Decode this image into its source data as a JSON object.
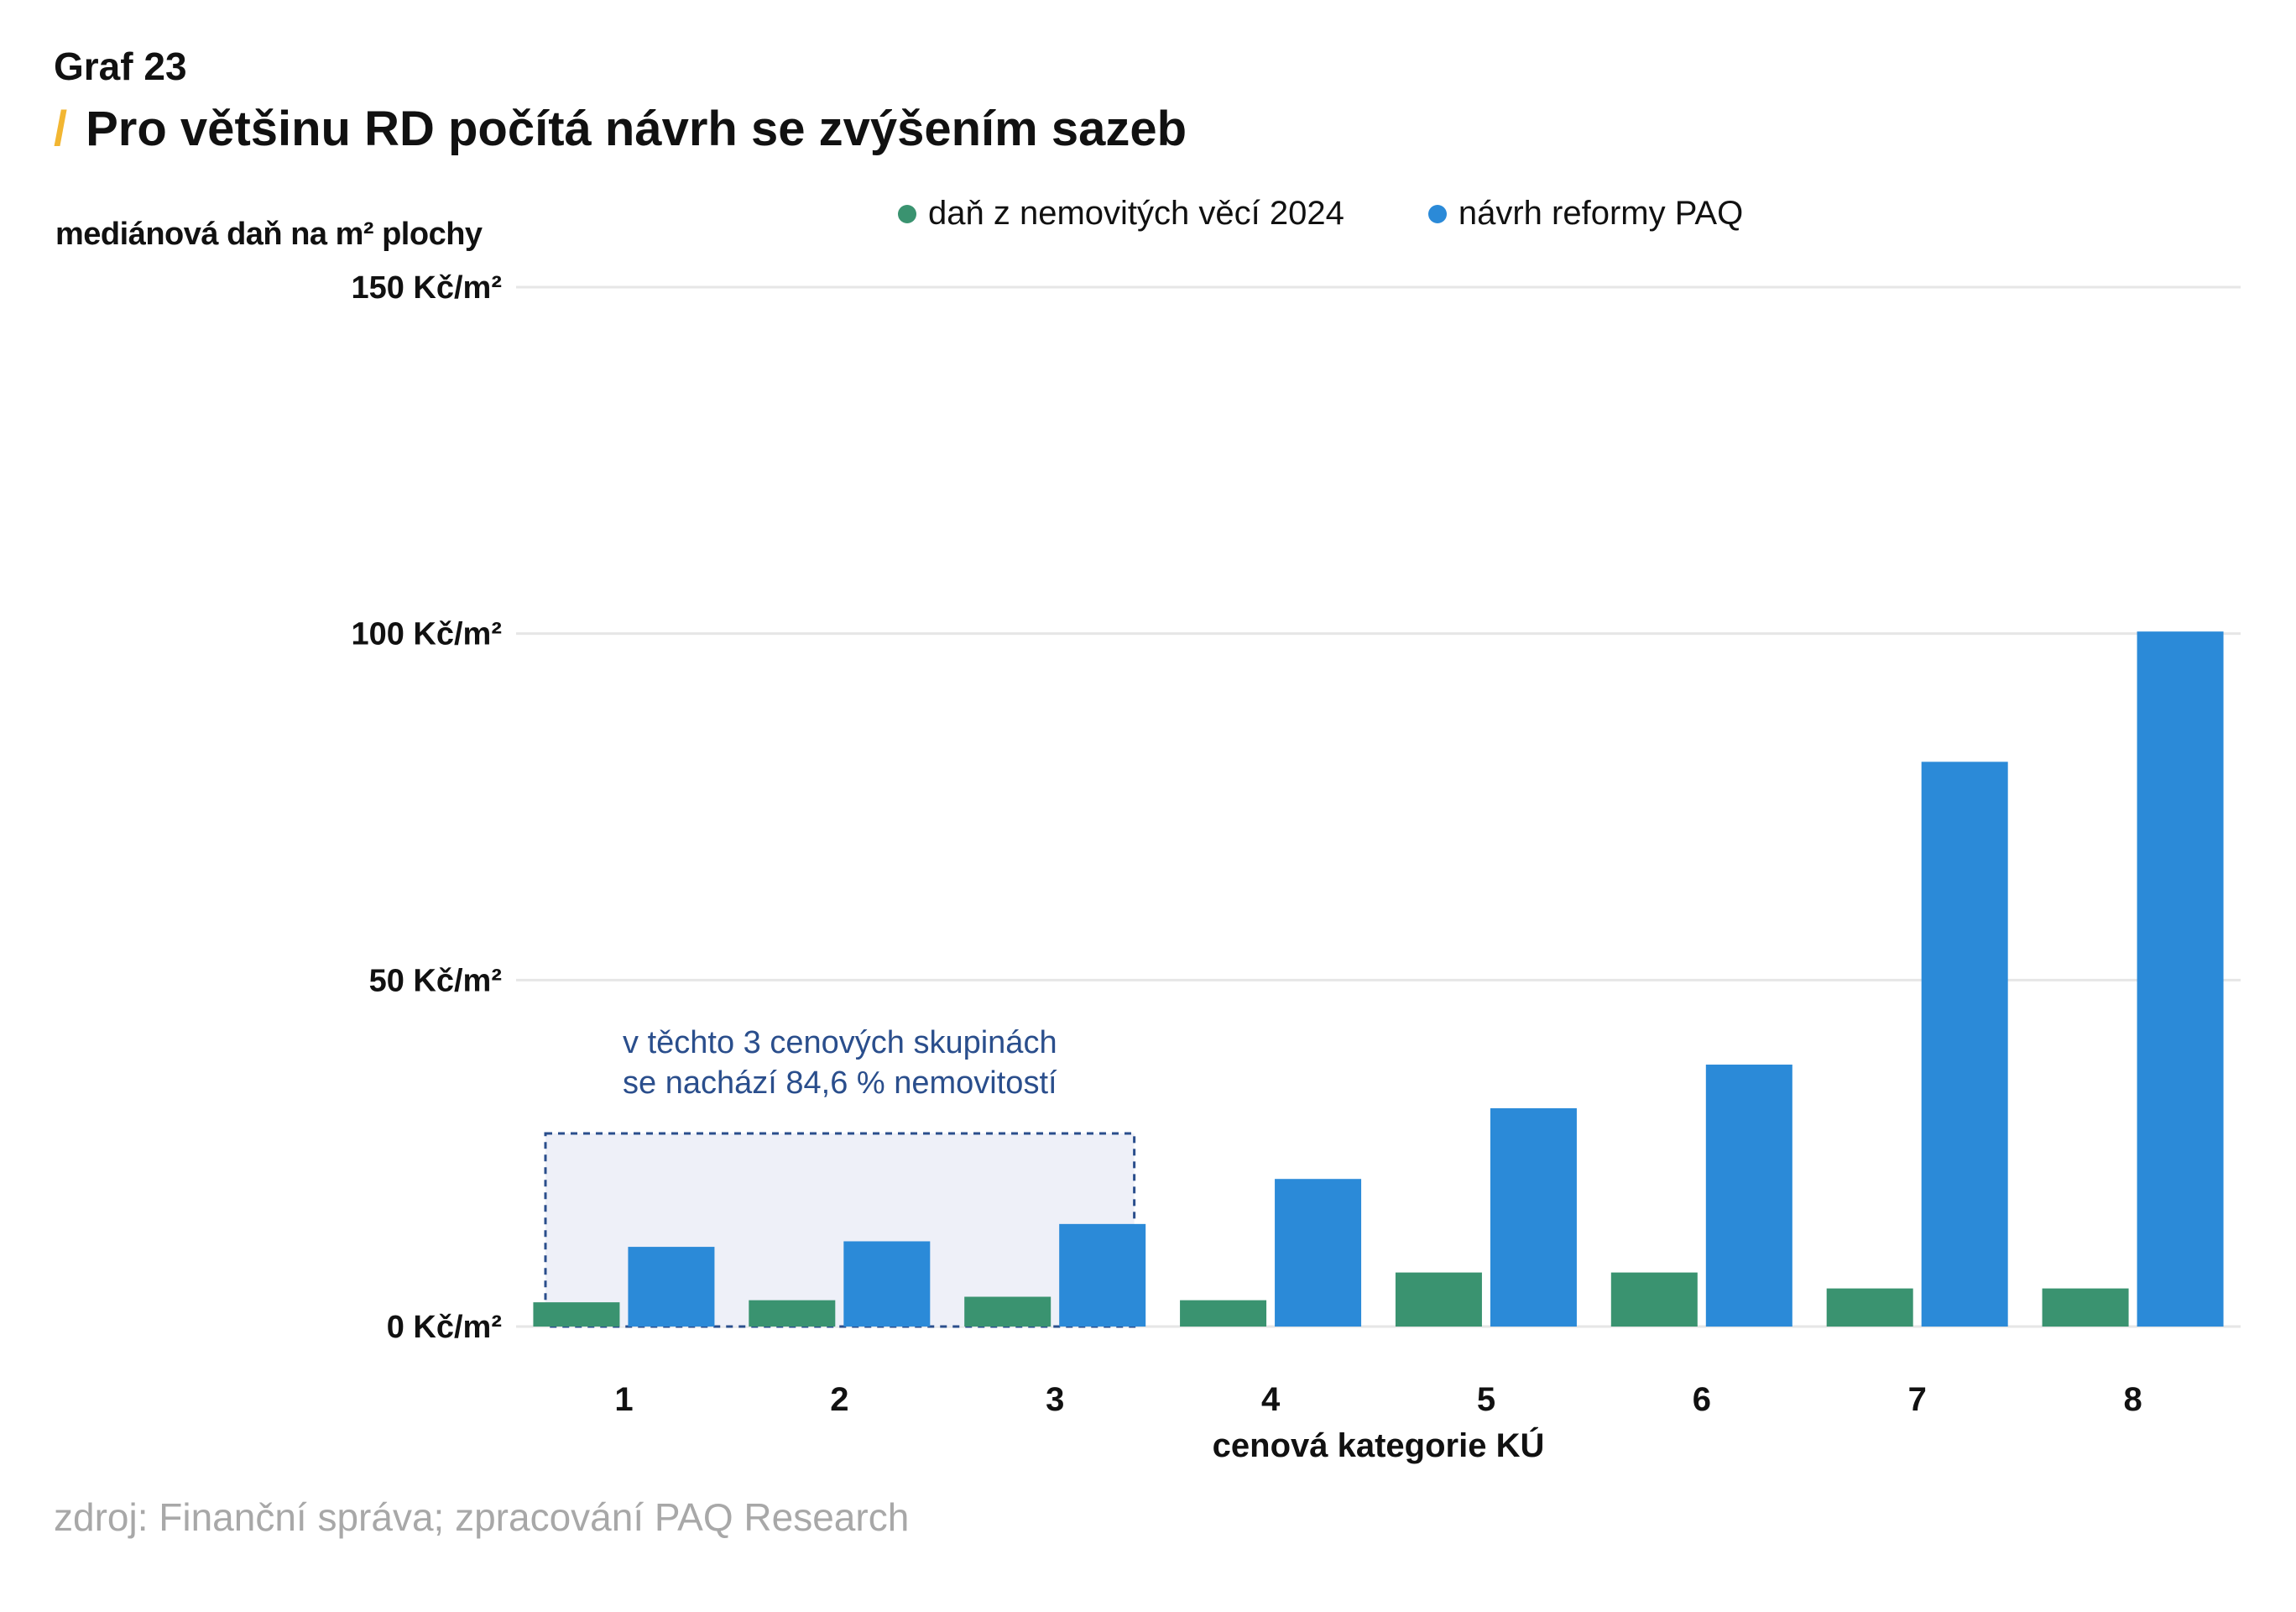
{
  "header": {
    "graf_label": "Graf 23",
    "title_slash": "/",
    "title": "Pro většinu RD počítá návrh se zvýšením sazeb"
  },
  "source": "zdroj: Finanční správa; zpracování PAQ Research",
  "colors": {
    "green": "#3a9370",
    "blue": "#2b8ad8",
    "accent": "#f2b632",
    "annotation_text": "#2a4e8c",
    "annotation_fill": "#eef0f8",
    "grid": "#e6e6e6"
  },
  "chart_data": {
    "type": "bar",
    "title": "Pro většinu RD počítá návrh se zvýšením sazeb",
    "ylabel": "mediánová daň na m² plochy",
    "xlabel": "cenová kategorie KÚ",
    "categories": [
      "1",
      "2",
      "3",
      "4",
      "5",
      "6",
      "7",
      "8"
    ],
    "ylim": [
      0,
      150
    ],
    "yticks": [
      0,
      50,
      100,
      150
    ],
    "ytick_labels": [
      "0 Kč/m²",
      "50 Kč/m²",
      "100 Kč/m²",
      "150 Kč/m²"
    ],
    "grid": true,
    "legend_position": "top",
    "series": [
      {
        "name": "daň z nemovitých věcí 2024",
        "color": "#3a9370",
        "values": [
          3.5,
          3.8,
          4.3,
          3.8,
          7.8,
          7.8,
          5.5,
          5.5
        ]
      },
      {
        "name": "návrh reformy PAQ",
        "color": "#2b8ad8",
        "values": [
          11.5,
          12.3,
          14.8,
          21.3,
          31.5,
          37.8,
          81.5,
          100.3
        ]
      }
    ],
    "annotation": {
      "text_line1": "v těchto 3 cenových skupinách",
      "text_line2": "se nachází 84,6 % nemovitostí",
      "categories": [
        "1",
        "2",
        "3"
      ]
    }
  }
}
